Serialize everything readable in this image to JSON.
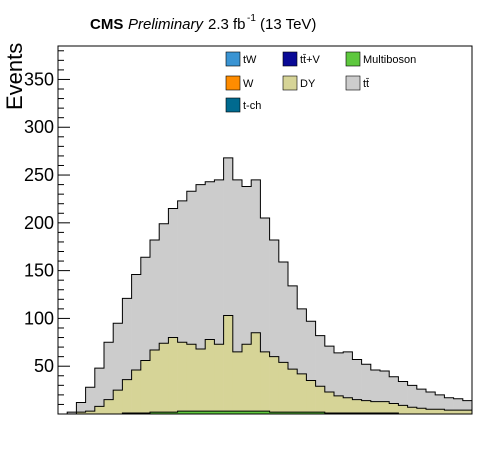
{
  "header": {
    "experiment": "CMS",
    "status": "Preliminary",
    "lumi": "2.3 fb",
    "lumi_exp": "-1",
    "energy": "(13 TeV)"
  },
  "chart_data": {
    "type": "area",
    "stacked": true,
    "ylabel": "Events",
    "xlabel": "",
    "ylim": [
      0,
      385
    ],
    "yticks": [
      50,
      100,
      150,
      200,
      250,
      300,
      350
    ],
    "yticks_labels": [
      "50",
      "100",
      "150",
      "200",
      "250",
      "300",
      "350"
    ],
    "bins": 45,
    "legend": {
      "position": "top-right",
      "entries": [
        {
          "key": "tW",
          "label": "tW",
          "color": "#3a94d3"
        },
        {
          "key": "ttV",
          "label": "tt̄+V",
          "color": "#0a0a96"
        },
        {
          "key": "multiboson",
          "label": "Multiboson",
          "color": "#5ec83e"
        },
        {
          "key": "W",
          "label": "W",
          "color": "#ff8c00"
        },
        {
          "key": "DY",
          "label": "DY",
          "color": "#d6d497"
        },
        {
          "key": "ttbar",
          "label": "tt̄",
          "color": "#cccccc"
        },
        {
          "key": "tch",
          "label": "t-ch",
          "color": "#006a8f"
        }
      ]
    },
    "series": [
      {
        "name": "Multiboson",
        "color": "#5ec83e",
        "values": [
          0,
          0,
          0,
          0,
          0,
          0,
          0,
          1,
          1,
          1,
          2,
          2,
          2,
          3,
          3,
          3,
          3,
          3,
          3,
          3,
          3,
          3,
          3,
          2,
          2,
          2,
          2,
          2,
          2,
          1,
          1,
          1,
          1,
          1,
          1,
          1,
          1,
          0,
          0,
          0,
          0,
          0,
          0,
          0,
          0
        ]
      },
      {
        "name": "DY",
        "color": "#d6d497",
        "values": [
          0,
          0,
          2,
          3,
          8,
          15,
          25,
          35,
          45,
          55,
          65,
          72,
          78,
          72,
          70,
          65,
          75,
          70,
          100,
          62,
          70,
          82,
          62,
          58,
          52,
          45,
          40,
          33,
          27,
          22,
          18,
          16,
          14,
          13,
          12,
          12,
          10,
          9,
          7,
          6,
          5,
          5,
          4,
          4,
          4
        ]
      },
      {
        "name": "tt̄",
        "color": "#cccccc",
        "values": [
          0,
          2,
          10,
          25,
          40,
          60,
          70,
          85,
          100,
          108,
          115,
          125,
          135,
          148,
          160,
          172,
          165,
          172,
          165,
          180,
          165,
          160,
          140,
          122,
          105,
          87,
          68,
          62,
          53,
          48,
          45,
          48,
          42,
          38,
          33,
          32,
          28,
          25,
          23,
          20,
          18,
          15,
          13,
          12,
          10
        ]
      }
    ],
    "totals": [
      0,
      2,
      12,
      28,
      48,
      75,
      95,
      121,
      146,
      164,
      182,
      199,
      215,
      223,
      233,
      240,
      243,
      245,
      268,
      245,
      238,
      245,
      205,
      182,
      159,
      134,
      110,
      97,
      82,
      71,
      64,
      65,
      57,
      52,
      46,
      45,
      39,
      34,
      30,
      26,
      23,
      20,
      17,
      16,
      14
    ]
  }
}
